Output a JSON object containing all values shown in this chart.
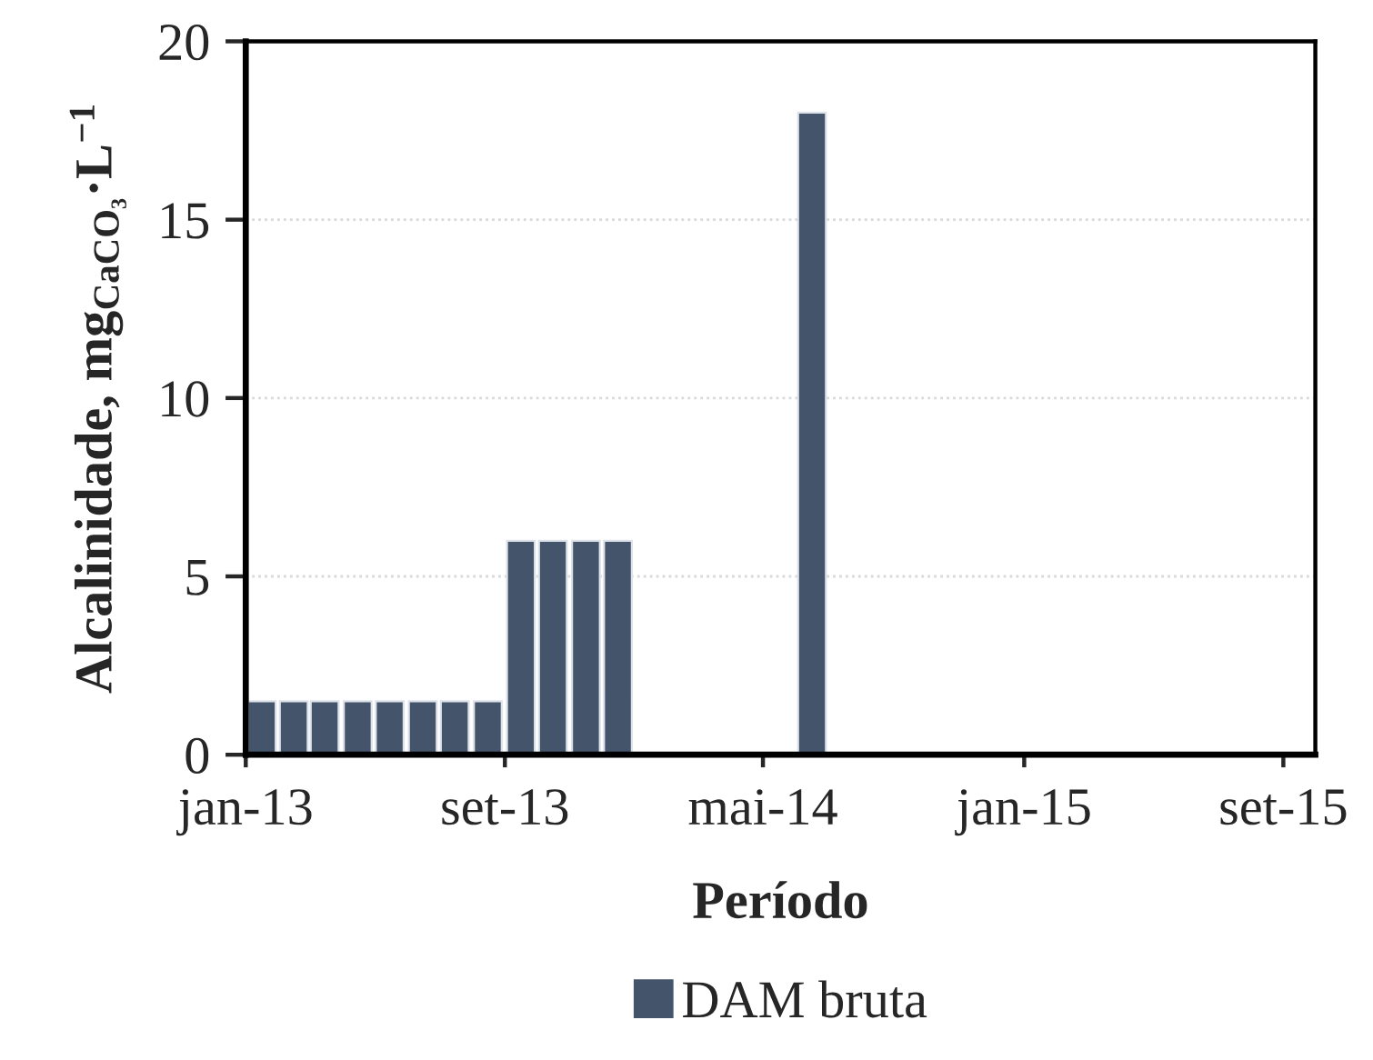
{
  "chart_data": {
    "type": "bar",
    "xlabel": "Período",
    "ylabel": "Alcalinidade, mg$_{CaCO₃}$·L$^{−1}$",
    "x": [
      "2013-01-16",
      "2013-02-15",
      "2013-03-16",
      "2013-04-16",
      "2013-05-16",
      "2013-06-16",
      "2013-07-16",
      "2013-08-16",
      "2013-09-16",
      "2013-10-16",
      "2013-11-16",
      "2013-12-16",
      "2014-06-16"
    ],
    "series": [
      {
        "name": "DAM bruta",
        "color": "#44546a",
        "values": [
          1.5,
          1.5,
          1.5,
          1.5,
          1.5,
          1.5,
          1.5,
          1.5,
          6,
          6,
          6,
          6,
          18
        ]
      }
    ],
    "xlim": [
      "2013-01",
      "2015-10"
    ],
    "xticks": [
      {
        "value": "2013-01",
        "label": "jan-13"
      },
      {
        "value": "2013-09",
        "label": "set-13"
      },
      {
        "value": "2014-05",
        "label": "mai-14"
      },
      {
        "value": "2015-01",
        "label": "jan-15"
      },
      {
        "value": "2015-09",
        "label": "set-15"
      }
    ],
    "ylim": [
      0,
      20
    ],
    "yticks": [
      0,
      5,
      10,
      15,
      20
    ],
    "grid": "y",
    "legend": "bottom"
  }
}
